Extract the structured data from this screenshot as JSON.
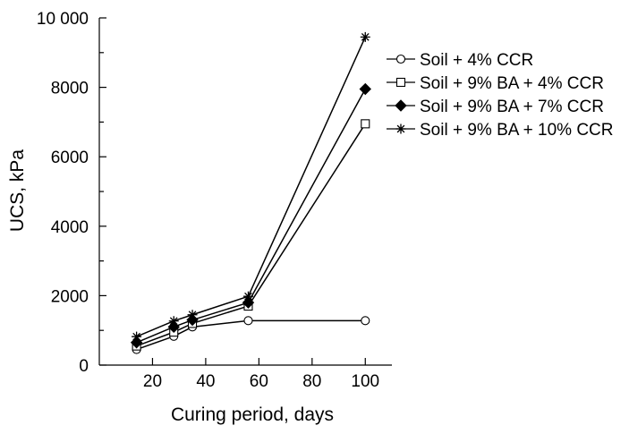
{
  "chart_data": {
    "type": "line",
    "title": "",
    "xlabel": "Curing period, days",
    "ylabel": "UCS, kPa",
    "xlim": [
      0,
      110
    ],
    "ylim": [
      0,
      10000
    ],
    "x_ticks": [
      20,
      40,
      60,
      80,
      100
    ],
    "x_tick_labels": [
      "20",
      "40",
      "60",
      "80",
      "100"
    ],
    "y_ticks": [
      0,
      2000,
      4000,
      6000,
      8000,
      10000
    ],
    "y_tick_labels": [
      "0",
      "2000",
      "4000",
      "6000",
      "8000",
      "10 000"
    ],
    "y_minor_ticks": [
      1000,
      3000,
      5000,
      7000,
      9000
    ],
    "grid": false,
    "legend_position": "right",
    "series": [
      {
        "name": "Soil + 4% CCR",
        "marker": "circle-open",
        "color": "#000000",
        "x": [
          14,
          28,
          35,
          56,
          100
        ],
        "y": [
          450,
          830,
          1100,
          1280,
          1280
        ]
      },
      {
        "name": "Soil + 9% BA + 4% CCR",
        "marker": "square-open",
        "color": "#000000",
        "x": [
          14,
          28,
          35,
          56,
          100
        ],
        "y": [
          550,
          950,
          1200,
          1700,
          6950
        ]
      },
      {
        "name": "Soil + 9% BA + 7% CCR",
        "marker": "diamond-filled",
        "color": "#000000",
        "x": [
          14,
          28,
          35,
          56,
          100
        ],
        "y": [
          650,
          1100,
          1300,
          1800,
          7950
        ]
      },
      {
        "name": "Soil + 9% BA + 10% CCR",
        "marker": "asterisk",
        "color": "#000000",
        "x": [
          14,
          28,
          35,
          56,
          100
        ],
        "y": [
          820,
          1270,
          1450,
          1980,
          9450
        ]
      }
    ]
  }
}
